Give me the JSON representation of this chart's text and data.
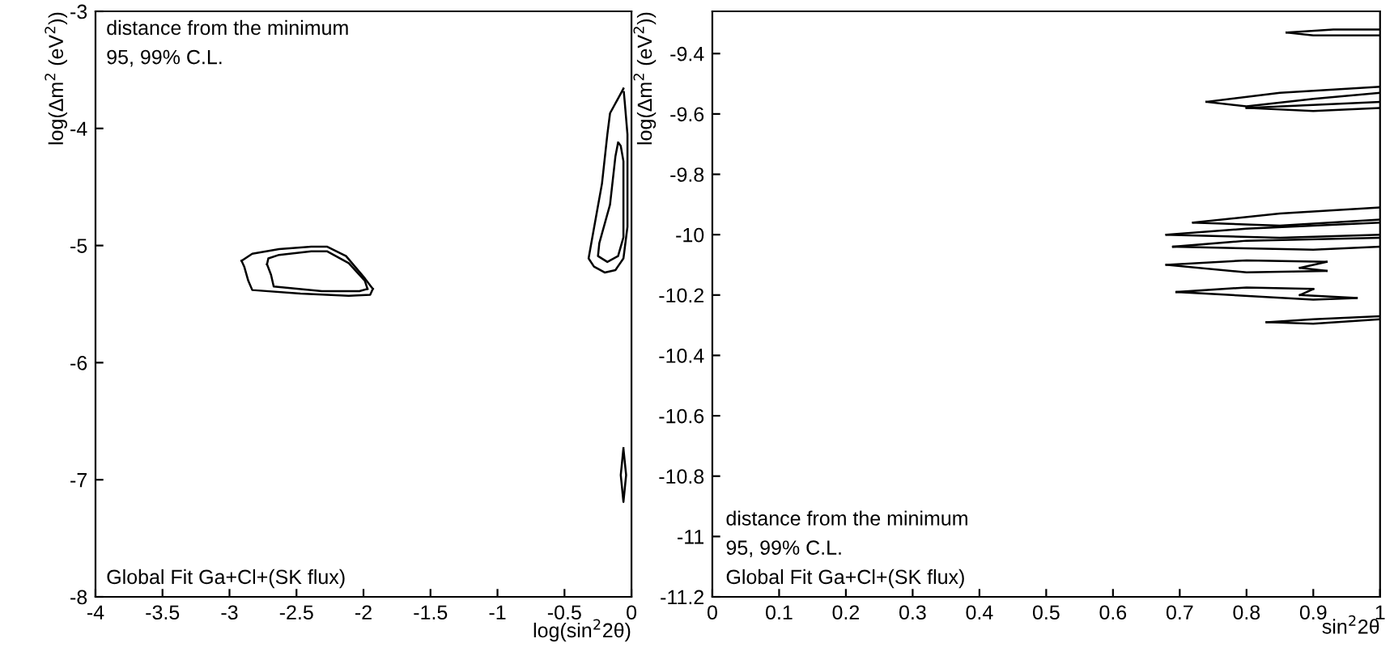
{
  "chart_data": [
    {
      "type": "line",
      "xlabel": "log(sin$^{2}$2θ)",
      "ylabel": "log(Δm$^{2}$ (eV$^{2}$))",
      "annotations": [
        "distance from the minimum",
        "95, 99% C.L.",
        "Global Fit Ga+Cl+(SK flux)"
      ],
      "xlim": [
        -4,
        0
      ],
      "ylim": [
        -8,
        -3
      ],
      "xticks": [
        -4,
        -3.5,
        -3,
        -2.5,
        -2,
        -1.5,
        -1,
        -0.5,
        0
      ],
      "yticks": [
        -8,
        -7,
        -6,
        -5,
        -4,
        -3
      ],
      "grid": false,
      "legend": false,
      "series": [
        {
          "color": "#000000",
          "x": [
            -2.91,
            -2.83,
            -2.63,
            -2.39,
            -2.27,
            -2.13,
            -1.99,
            -1.93
          ],
          "values": [
            -5.13,
            -5.07,
            -5.03,
            -5.01,
            -5.01,
            -5.09,
            -5.28,
            -5.37
          ]
        },
        {
          "color": "#000000",
          "x": [
            -2.91,
            -2.89,
            -2.86,
            -2.83,
            -2.47,
            -2.11,
            -1.95,
            -1.93
          ],
          "values": [
            -5.13,
            -5.18,
            -5.3,
            -5.38,
            -5.41,
            -5.43,
            -5.42,
            -5.37
          ]
        },
        {
          "color": "#000000",
          "x": [
            -2.72,
            -2.71,
            -2.63,
            -2.39,
            -2.27,
            -2.11,
            -1.99,
            -1.97
          ],
          "values": [
            -5.16,
            -5.11,
            -5.08,
            -5.05,
            -5.05,
            -5.15,
            -5.3,
            -5.37
          ]
        },
        {
          "color": "#000000",
          "x": [
            -2.72,
            -2.69,
            -2.67,
            -2.31,
            -2.03,
            -1.97
          ],
          "values": [
            -5.16,
            -5.25,
            -5.35,
            -5.39,
            -5.39,
            -5.37
          ]
        },
        {
          "color": "#000000",
          "x": [
            -0.06,
            -0.16,
            -0.18,
            -0.22,
            -0.3,
            -0.32,
            -0.28,
            -0.2,
            -0.12,
            -0.06,
            -0.03,
            -0.03,
            -0.05,
            -0.057
          ],
          "values": [
            -3.66,
            -3.87,
            -4.05,
            -4.47,
            -4.98,
            -5.11,
            -5.18,
            -5.23,
            -5.21,
            -5.11,
            -4.84,
            -4.05,
            -3.78,
            -3.69
          ]
        },
        {
          "color": "#000000",
          "x": [
            -0.1,
            -0.12,
            -0.16,
            -0.24,
            -0.25,
            -0.18,
            -0.1,
            -0.06,
            -0.06,
            -0.08,
            -0.095
          ],
          "values": [
            -4.12,
            -4.24,
            -4.65,
            -4.98,
            -5.09,
            -5.14,
            -5.09,
            -4.93,
            -4.28,
            -4.15,
            -4.125
          ]
        },
        {
          "color": "#000000",
          "x": [
            -0.06,
            -0.08,
            -0.06,
            -0.04,
            -0.059
          ],
          "values": [
            -6.73,
            -6.96,
            -7.19,
            -6.96,
            -6.745
          ]
        }
      ]
    },
    {
      "type": "line",
      "xlabel": "sin$^{2}$2θ",
      "ylabel": "log(Δm$^{2}$ (eV$^{2}$))",
      "annotations": [
        "distance from the minimum",
        "95, 99% C.L.",
        "Global Fit Ga+Cl+(SK flux)"
      ],
      "xlim": [
        0,
        1
      ],
      "ylim": [
        -11.2,
        -9.26
      ],
      "xticks": [
        0,
        0.1,
        0.2,
        0.3,
        0.4,
        0.5,
        0.6,
        0.7,
        0.8,
        0.9,
        1
      ],
      "yticks": [
        -11.2,
        -11,
        -10.8,
        -10.6,
        -10.4,
        -10.2,
        -10,
        -9.8,
        -9.6,
        -9.4
      ],
      "grid": false,
      "legend": false,
      "series": [
        {
          "color": "#000000",
          "x": [
            0.86,
            0.93,
            1.0
          ],
          "values": [
            -9.33,
            -9.32,
            -9.32
          ]
        },
        {
          "color": "#000000",
          "x": [
            0.86,
            0.9,
            1.0
          ],
          "values": [
            -9.33,
            -9.34,
            -9.34
          ]
        },
        {
          "color": "#000000",
          "x": [
            0.74,
            0.85,
            1.0
          ],
          "values": [
            -9.56,
            -9.53,
            -9.51
          ]
        },
        {
          "color": "#000000",
          "x": [
            0.74,
            0.8,
            0.9,
            1.0
          ],
          "values": [
            -9.56,
            -9.575,
            -9.55,
            -9.53
          ]
        },
        {
          "color": "#000000",
          "x": [
            0.8,
            0.9,
            1.0
          ],
          "values": [
            -9.58,
            -9.57,
            -9.56
          ]
        },
        {
          "color": "#000000",
          "x": [
            0.8,
            0.9,
            1.0
          ],
          "values": [
            -9.58,
            -9.59,
            -9.58
          ]
        },
        {
          "color": "#000000",
          "x": [
            0.72,
            0.85,
            1.0
          ],
          "values": [
            -9.96,
            -9.93,
            -9.91
          ]
        },
        {
          "color": "#000000",
          "x": [
            0.72,
            0.85,
            1.0
          ],
          "values": [
            -9.96,
            -9.97,
            -9.95
          ]
        },
        {
          "color": "#000000",
          "x": [
            0.68,
            0.8,
            1.0
          ],
          "values": [
            -10.0,
            -9.98,
            -9.96
          ]
        },
        {
          "color": "#000000",
          "x": [
            0.68,
            0.85,
            1.0
          ],
          "values": [
            -10.0,
            -10.01,
            -10.0
          ]
        },
        {
          "color": "#000000",
          "x": [
            0.69,
            0.8,
            1.0
          ],
          "values": [
            -10.04,
            -10.02,
            -10.01
          ]
        },
        {
          "color": "#000000",
          "x": [
            0.69,
            0.9,
            1.0
          ],
          "values": [
            -10.04,
            -10.05,
            -10.04
          ]
        },
        {
          "color": "#000000",
          "x": [
            0.68,
            0.8,
            0.92
          ],
          "values": [
            -10.1,
            -10.085,
            -10.09
          ]
        },
        {
          "color": "#000000",
          "x": [
            0.88,
            0.92
          ],
          "values": [
            -10.11,
            -10.09
          ]
        },
        {
          "color": "#000000",
          "x": [
            0.88,
            0.92
          ],
          "values": [
            -10.11,
            -10.12
          ]
        },
        {
          "color": "#000000",
          "x": [
            0.68,
            0.8,
            0.92
          ],
          "values": [
            -10.1,
            -10.125,
            -10.12
          ]
        },
        {
          "color": "#000000",
          "x": [
            0.695,
            0.8,
            0.9
          ],
          "values": [
            -10.19,
            -10.175,
            -10.18
          ]
        },
        {
          "color": "#000000",
          "x": [
            0.88,
            0.9
          ],
          "values": [
            -10.2,
            -10.18
          ]
        },
        {
          "color": "#000000",
          "x": [
            0.88,
            0.965
          ],
          "values": [
            -10.2,
            -10.21
          ]
        },
        {
          "color": "#000000",
          "x": [
            0.695,
            0.9,
            0.965
          ],
          "values": [
            -10.19,
            -10.215,
            -10.21
          ]
        },
        {
          "color": "#000000",
          "x": [
            0.83,
            0.9,
            1.0
          ],
          "values": [
            -10.29,
            -10.28,
            -10.27
          ]
        },
        {
          "color": "#000000",
          "x": [
            0.83,
            0.9,
            1.0
          ],
          "values": [
            -10.29,
            -10.295,
            -10.28
          ]
        }
      ]
    }
  ]
}
